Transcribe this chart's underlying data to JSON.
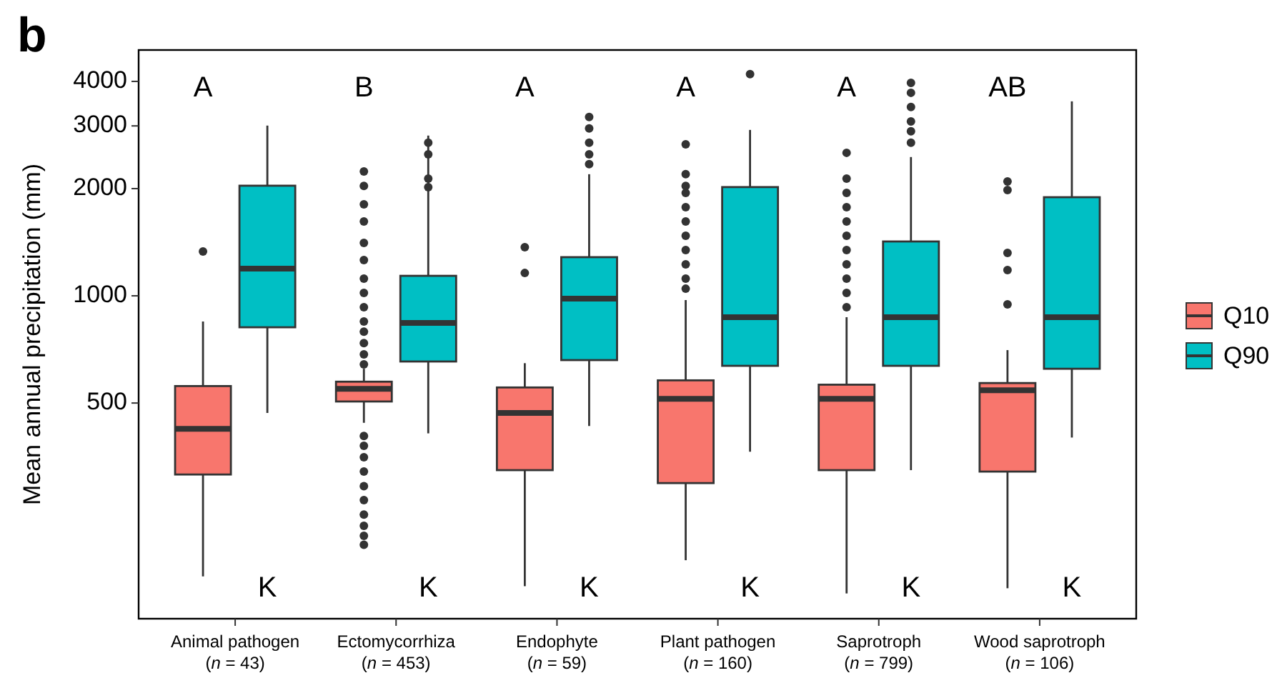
{
  "chart_data": {
    "type": "box",
    "title": "b",
    "ylabel": "Mean annual precipitation (mm)",
    "categories": [
      "Animal pathogen\n(n = 43)",
      "Ectomycorrhiza\n(n = 453)",
      "Endophyte\n(n = 59)",
      "Plant pathogen\n(n = 160)",
      "Saprotroph\n(n = 799)",
      "Wood saprotroph\n(n = 106)"
    ],
    "series": [
      {
        "name": "Q10",
        "color": "#f8766d",
        "boxes": [
          {
            "low": 163,
            "q1": 315,
            "median": 423,
            "q3": 558,
            "high": 847,
            "outliers": [
              1332
            ]
          },
          {
            "low": 440,
            "q1": 505,
            "median": 548,
            "q3": 574,
            "high": 624,
            "outliers": [
              2234,
              2036,
              1806,
              1617,
              1408,
              1260,
              1117,
              1019,
              929,
              847,
              793,
              737,
              685,
              642,
              404,
              379,
              352,
              321,
              292,
              267,
              243,
              226,
              212,
              200
            ]
          },
          {
            "low": 153,
            "q1": 324,
            "median": 469,
            "q3": 553,
            "high": 647,
            "outliers": [
              1369,
              1159
            ]
          },
          {
            "low": 181,
            "q1": 298,
            "median": 514,
            "q3": 579,
            "high": 973,
            "outliers": [
              2664,
              2195,
              2036,
              1946,
              1774,
              1617,
              1475,
              1344,
              1226,
              1117,
              1047
            ]
          },
          {
            "low": 146,
            "q1": 324,
            "median": 514,
            "q3": 563,
            "high": 871,
            "outliers": [
              2521,
              2134,
              1946,
              1774,
              1617,
              1475,
              1344,
              1226,
              1117,
              1019,
              929
            ]
          },
          {
            "low": 151,
            "q1": 321,
            "median": 543,
            "q3": 569,
            "high": 704,
            "outliers": [
              2095,
              1981,
              1320,
              1181,
              946
            ]
          }
        ]
      },
      {
        "name": "Q90",
        "color": "#00bfc4",
        "boxes": [
          {
            "low": 469,
            "q1": 816,
            "median": 1192,
            "q3": 2038,
            "high": 3006
          },
          {
            "low": 411,
            "q1": 654,
            "median": 839,
            "q3": 1138,
            "high": 2818,
            "outliers": [
              2690,
              2497,
              2134,
              2018
            ]
          },
          {
            "low": 431,
            "q1": 660,
            "median": 982,
            "q3": 1284,
            "high": 2195,
            "outliers": [
              3177,
              2950,
              2690,
              2497,
              2343
            ]
          },
          {
            "low": 365,
            "q1": 636,
            "median": 871,
            "q3": 2020,
            "high": 2923,
            "outliers": [
              4194
            ]
          },
          {
            "low": 324,
            "q1": 636,
            "median": 871,
            "q3": 1421,
            "high": 2453,
            "outliers": [
              3964,
              3716,
              3391,
              3089,
              2897,
              2690
            ]
          },
          {
            "low": 400,
            "q1": 624,
            "median": 871,
            "q3": 1892,
            "high": 3516
          }
        ]
      }
    ],
    "ylim": [
      124,
      4900
    ],
    "yticks": [
      500,
      1000,
      2000,
      3000,
      4000
    ],
    "log": true,
    "grid": false,
    "legend": "right",
    "annotations": [
      "A",
      "K",
      "B",
      "K",
      "A",
      "K",
      "A",
      "K",
      "A",
      "K",
      "AB",
      "K"
    ]
  }
}
